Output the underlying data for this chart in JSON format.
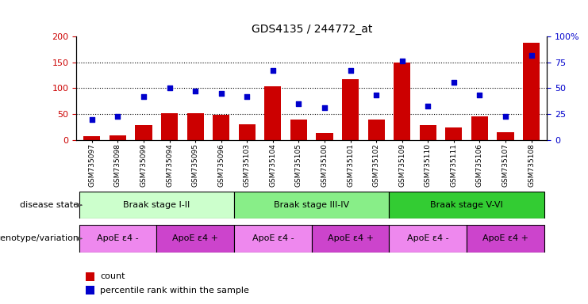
{
  "title": "GDS4135 / 244772_at",
  "samples": [
    "GSM735097",
    "GSM735098",
    "GSM735099",
    "GSM735094",
    "GSM735095",
    "GSM735096",
    "GSM735103",
    "GSM735104",
    "GSM735105",
    "GSM735100",
    "GSM735101",
    "GSM735102",
    "GSM735109",
    "GSM735110",
    "GSM735111",
    "GSM735106",
    "GSM735107",
    "GSM735108"
  ],
  "counts": [
    7,
    9,
    28,
    52,
    51,
    48,
    30,
    103,
    40,
    14,
    118,
    40,
    150,
    29,
    24,
    46,
    15,
    188
  ],
  "percentiles_right": [
    20,
    23,
    42,
    50,
    47,
    45,
    42,
    67,
    35,
    31,
    67,
    43,
    76,
    33,
    56,
    43,
    23,
    82
  ],
  "ylim_left": [
    0,
    200
  ],
  "ylim_right": [
    0,
    100
  ],
  "yticks_left": [
    0,
    50,
    100,
    150,
    200
  ],
  "yticks_right": [
    0,
    25,
    50,
    75,
    100
  ],
  "bar_color": "#cc0000",
  "scatter_color": "#0000cc",
  "disease_stages": [
    {
      "label": "Braak stage I-II",
      "start": 0,
      "end": 6,
      "color": "#ccffcc"
    },
    {
      "label": "Braak stage III-IV",
      "start": 6,
      "end": 12,
      "color": "#88ee88"
    },
    {
      "label": "Braak stage V-VI",
      "start": 12,
      "end": 18,
      "color": "#33cc33"
    }
  ],
  "genotype_groups": [
    {
      "label": "ApoE ε4 -",
      "start": 0,
      "end": 3,
      "color": "#ee88ee"
    },
    {
      "label": "ApoE ε4 +",
      "start": 3,
      "end": 6,
      "color": "#cc44cc"
    },
    {
      "label": "ApoE ε4 -",
      "start": 6,
      "end": 9,
      "color": "#ee88ee"
    },
    {
      "label": "ApoE ε4 +",
      "start": 9,
      "end": 12,
      "color": "#cc44cc"
    },
    {
      "label": "ApoE ε4 -",
      "start": 12,
      "end": 15,
      "color": "#ee88ee"
    },
    {
      "label": "ApoE ε4 +",
      "start": 15,
      "end": 18,
      "color": "#cc44cc"
    }
  ],
  "legend_count_label": "count",
  "legend_percentile_label": "percentile rank within the sample",
  "disease_state_label": "disease state",
  "genotype_label": "genotype/variation",
  "n_samples": 18
}
